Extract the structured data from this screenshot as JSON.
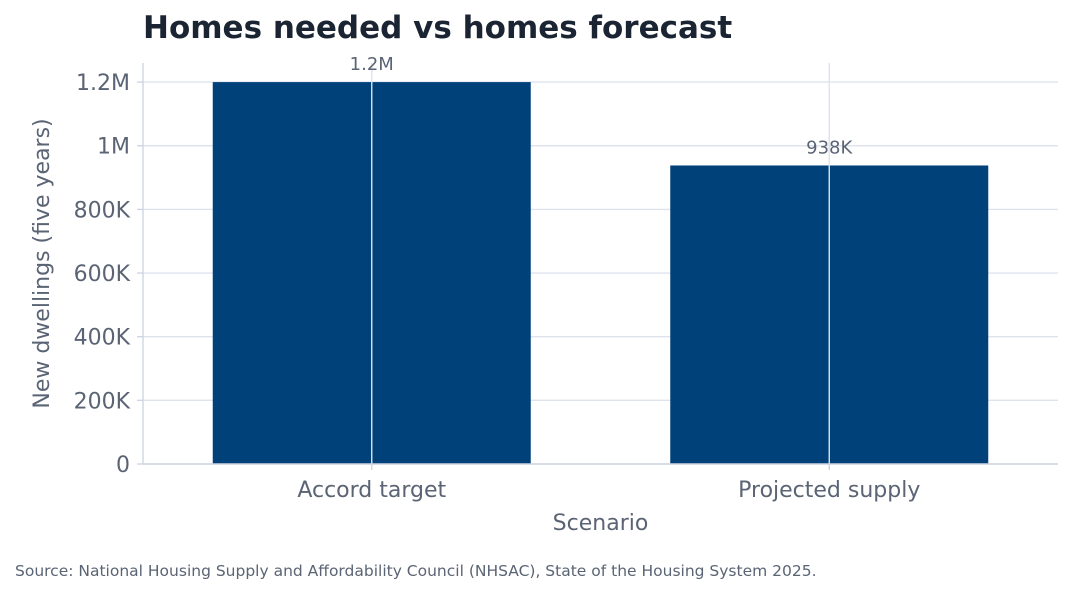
{
  "chart_data": {
    "type": "bar",
    "title": "Homes needed vs homes forecast",
    "categories": [
      "Accord target",
      "Projected supply"
    ],
    "values": [
      1200000,
      938000
    ],
    "data_labels": [
      "1.2M",
      "938K"
    ],
    "xlabel": "Scenario",
    "ylabel": "New dwellings (five years)",
    "ylim": [
      0,
      1260000
    ],
    "yticks": [
      0,
      200000,
      400000,
      600000,
      800000,
      1000000,
      1200000
    ],
    "ytick_labels": [
      "0",
      "200K",
      "400K",
      "600K",
      "800K",
      "1M",
      "1.2M"
    ],
    "grid": true,
    "bar_color": "#00417a",
    "grid_color": "#dfe3ee",
    "text_color": "#5a6474",
    "title_color": "#1b2432"
  },
  "source": "Source: National Housing Supply and Affordability Council (NHSAC), State of the Housing System 2025."
}
